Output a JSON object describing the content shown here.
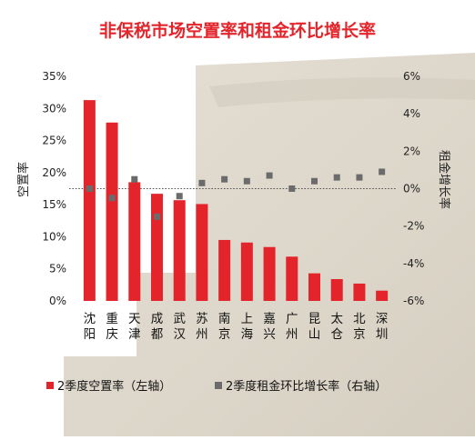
{
  "chart_data": {
    "type": "bar",
    "title": "非保税市场空置率和租金环比增长率",
    "categories": [
      [
        "沈",
        "阳"
      ],
      [
        "重",
        "庆"
      ],
      [
        "天",
        "津"
      ],
      [
        "成",
        "都"
      ],
      [
        "武",
        "汉"
      ],
      [
        "苏",
        "州"
      ],
      [
        "南",
        "京"
      ],
      [
        "上",
        "海"
      ],
      [
        "嘉",
        "兴"
      ],
      [
        "广",
        "州"
      ],
      [
        "昆",
        "山"
      ],
      [
        "太",
        "仓"
      ],
      [
        "北",
        "京"
      ],
      [
        "深",
        "圳"
      ]
    ],
    "series": [
      {
        "name": "2季度空置率（左轴）",
        "type": "bar",
        "axis": "left",
        "color": "#e3242b",
        "values": [
          31.3,
          27.8,
          18.5,
          16.7,
          15.7,
          15.1,
          9.5,
          9.1,
          8.4,
          6.9,
          4.3,
          3.4,
          2.7,
          1.6
        ]
      },
      {
        "name": "2季度租金环比增长率（右轴）",
        "type": "scatter",
        "axis": "right",
        "color": "#6b6b6b",
        "values": [
          0.0,
          -0.5,
          0.5,
          -1.5,
          -0.4,
          0.3,
          0.5,
          0.4,
          0.7,
          0.0,
          0.4,
          0.6,
          0.6,
          0.9
        ]
      }
    ],
    "y_left": {
      "label": "空置率",
      "ylim": [
        0,
        35
      ],
      "ticks": [
        0,
        5,
        10,
        15,
        20,
        25,
        30,
        35
      ],
      "tick_labels": [
        "0%",
        "5%",
        "10%",
        "15%",
        "20%",
        "25%",
        "30%",
        "35%"
      ]
    },
    "y_right": {
      "label": "租金增长率",
      "ylim": [
        -6,
        6
      ],
      "ticks": [
        -6,
        -4,
        -2,
        0,
        2,
        4,
        6
      ],
      "tick_labels": [
        "-6%",
        "-4%",
        "-2%",
        "0%",
        "2%",
        "4%",
        "6%"
      ]
    },
    "reference_line": {
      "axis": "right",
      "value": 0,
      "style": "dotted"
    },
    "legend": {
      "position": "bottom"
    },
    "grid": false,
    "background_color": "#ffffff",
    "texture_color": "#ddd6ca"
  }
}
